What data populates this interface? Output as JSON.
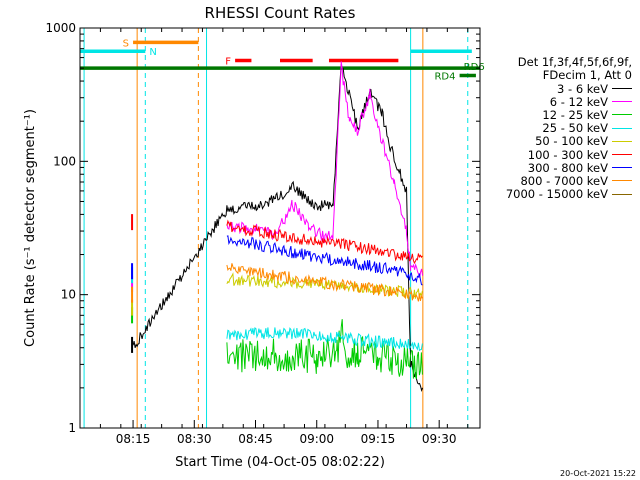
{
  "chart_data": {
    "type": "line",
    "title": "RHESSI Count Rates",
    "xlabel": "Start Time (04-Oct-05 08:02:22)",
    "ylabel": "Count Rate (s⁻¹ detector segment⁻¹)",
    "yscale": "log",
    "ylim": [
      1,
      1000
    ],
    "xlim": [
      "08:02",
      "09:40"
    ],
    "x_ticks": [
      "08:15",
      "08:30",
      "08:45",
      "09:00",
      "09:15",
      "09:30"
    ],
    "y_ticks": [
      "1",
      "10",
      "100",
      "1000"
    ],
    "legend": {
      "placement": "right",
      "header": [
        "Det 1f,3f,4f,5f,6f,9f,",
        "FDecim 1, Att 0"
      ]
    },
    "series": [
      {
        "name": "3 - 6 keV",
        "color": "#000000",
        "x": [
          "08:15",
          "08:15",
          "08:38",
          "08:45",
          "08:50",
          "08:54",
          "09:00",
          "09:04",
          "09:06",
          "09:10",
          "09:13",
          "09:16",
          "09:18",
          "09:22",
          "09:23",
          "09:26"
        ],
        "y": [
          4.2,
          4.0,
          44,
          46,
          52,
          65,
          46,
          48,
          540,
          180,
          330,
          230,
          130,
          60,
          3,
          2
        ]
      },
      {
        "name": "6 - 12 keV",
        "color": "#ff00ff",
        "x": [
          "08:15",
          "08:38",
          "08:45",
          "08:50",
          "08:54",
          "08:58",
          "09:02",
          "09:04",
          "09:06",
          "09:08",
          "09:10",
          "09:13",
          "09:16",
          "09:19",
          "09:22",
          "09:23",
          "09:26"
        ],
        "y": [
          12,
          33,
          31,
          28,
          48,
          32,
          27,
          28,
          520,
          200,
          170,
          320,
          140,
          70,
          30,
          16,
          14
        ]
      },
      {
        "name": "12 - 25 keV",
        "color": "#00cc00",
        "x": [
          "08:15",
          "08:38",
          "08:45",
          "08:55",
          "09:00",
          "09:05",
          "09:06",
          "09:07",
          "09:10",
          "09:15",
          "09:20",
          "09:26"
        ],
        "y": [
          7,
          3.4,
          3.6,
          3.5,
          3.4,
          3.6,
          6.5,
          3.8,
          3.7,
          3.5,
          3.2,
          3.0
        ]
      },
      {
        "name": "25 - 50 keV",
        "color": "#00e5e5",
        "x": [
          "08:15",
          "08:38",
          "08:50",
          "09:00",
          "09:10",
          "09:20",
          "09:26"
        ],
        "y": [
          14,
          5.0,
          5.2,
          5.0,
          4.6,
          4.3,
          4.1
        ]
      },
      {
        "name": "50 - 100 keV",
        "color": "#cccc00",
        "x": [
          "08:15",
          "08:38",
          "08:50",
          "09:00",
          "09:10",
          "09:20",
          "09:26"
        ],
        "y": [
          8.0,
          13.0,
          12.5,
          12.0,
          11.3,
          10.5,
          10.0
        ]
      },
      {
        "name": "100 - 300 keV",
        "color": "#ff0000",
        "x": [
          "08:15",
          "08:38",
          "08:50",
          "09:00",
          "09:10",
          "09:20",
          "09:26"
        ],
        "y": [
          35,
          33,
          28,
          25,
          23,
          20,
          18
        ]
      },
      {
        "name": "300 - 800 keV",
        "color": "#0000ff",
        "x": [
          "08:15",
          "08:38",
          "08:50",
          "09:00",
          "09:10",
          "09:20",
          "09:26"
        ],
        "y": [
          15,
          27,
          22,
          19,
          17,
          15,
          13
        ]
      },
      {
        "name": "800 - 7000 keV",
        "color": "#ff8800",
        "x": [
          "08:15",
          "08:38",
          "08:50",
          "09:00",
          "09:10",
          "09:20",
          "09:26"
        ],
        "y": [
          10,
          16,
          14,
          12.5,
          11.5,
          10.3,
          9.2
        ]
      },
      {
        "name": "7000 - 15000 keV",
        "color": "#886600",
        "x": [],
        "y": []
      }
    ],
    "annotations": [
      {
        "text": "S",
        "color": "#ff8800"
      },
      {
        "text": "N",
        "color": "#00e5e5"
      },
      {
        "text": "F",
        "color": "#ff0000"
      },
      {
        "text": "RD4",
        "color": "#007700"
      },
      {
        "text": "RD6",
        "color": "#007700"
      }
    ],
    "flag_bars": [
      {
        "flag": "S",
        "color": "#ff8800",
        "x": [
          "08:15",
          "08:31"
        ],
        "y": 780
      },
      {
        "flag": "N",
        "color": "#00e5e5",
        "x": [
          "08:02",
          "08:18"
        ],
        "y": 670
      },
      {
        "flag": "N",
        "color": "#00e5e5",
        "x": [
          "09:23",
          "09:38"
        ],
        "y": 670
      },
      {
        "flag": "F",
        "color": "#ff0000",
        "x": [
          "08:40",
          "08:44"
        ],
        "y": 570
      },
      {
        "flag": "F",
        "color": "#ff0000",
        "x": [
          "08:51",
          "08:59"
        ],
        "y": 570
      },
      {
        "flag": "F",
        "color": "#ff0000",
        "x": [
          "09:03",
          "09:20"
        ],
        "y": 570
      },
      {
        "flag": "RD",
        "color": "#007700",
        "x": [
          "08:02",
          "09:40"
        ],
        "y": 500
      },
      {
        "flag": "RD",
        "color": "#007700",
        "x": [
          "09:35",
          "09:39"
        ],
        "y": 440
      }
    ],
    "vertical_markers": [
      {
        "x": "08:03",
        "color": "#00e5e5",
        "style": "solid"
      },
      {
        "x": "08:16",
        "color": "#ff8800",
        "style": "solid"
      },
      {
        "x": "08:18",
        "color": "#00e5e5",
        "style": "dashed"
      },
      {
        "x": "08:31",
        "color": "#ff8800",
        "style": "dashed"
      },
      {
        "x": "08:33",
        "color": "#00e5e5",
        "style": "solid"
      },
      {
        "x": "09:23",
        "color": "#00e5e5",
        "style": "solid"
      },
      {
        "x": "09:26",
        "color": "#ff8800",
        "style": "solid"
      },
      {
        "x": "09:37",
        "color": "#00e5e5",
        "style": "dashed"
      }
    ]
  },
  "timestamp": "20-Oct-2021 15:22"
}
